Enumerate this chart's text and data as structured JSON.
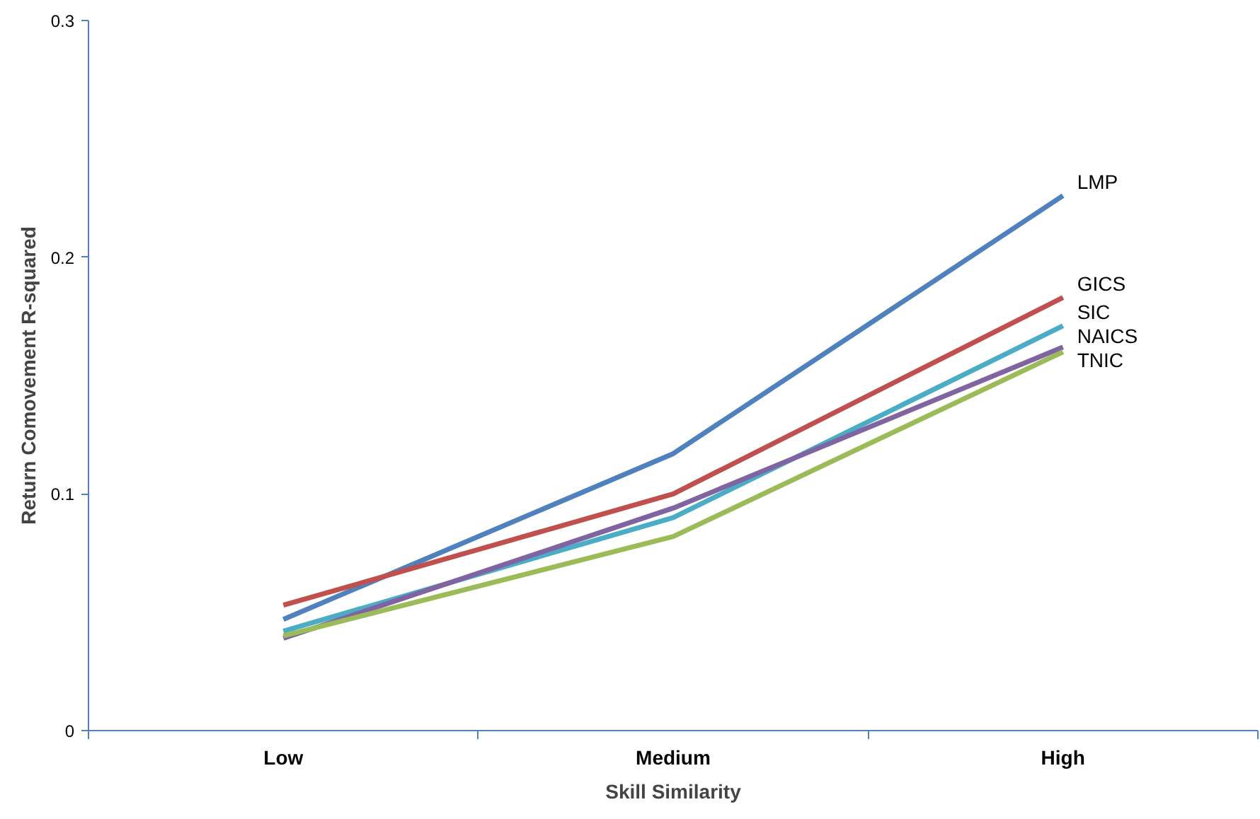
{
  "chart_data": {
    "type": "line",
    "xlabel": "Skill Similarity",
    "ylabel": "Return Comovement R-squared",
    "categories": [
      "Low",
      "Medium",
      "High"
    ],
    "series": [
      {
        "name": "LMP",
        "color": "#4f81bd",
        "values": [
          0.047,
          0.117,
          0.226
        ]
      },
      {
        "name": "GICS",
        "color": "#c0504d",
        "values": [
          0.053,
          0.1,
          0.183
        ]
      },
      {
        "name": "SIC",
        "color": "#4bacc6",
        "values": [
          0.042,
          0.09,
          0.171
        ]
      },
      {
        "name": "NAICS",
        "color": "#8064a2",
        "values": [
          0.039,
          0.094,
          0.162
        ]
      },
      {
        "name": "TNIC",
        "color": "#9bbb59",
        "values": [
          0.04,
          0.082,
          0.16
        ]
      }
    ],
    "ylim": [
      0,
      0.3
    ],
    "yticks": [
      0,
      0.1,
      0.2,
      0.3
    ],
    "grid": false,
    "marker": "none",
    "line_style": "solid"
  }
}
